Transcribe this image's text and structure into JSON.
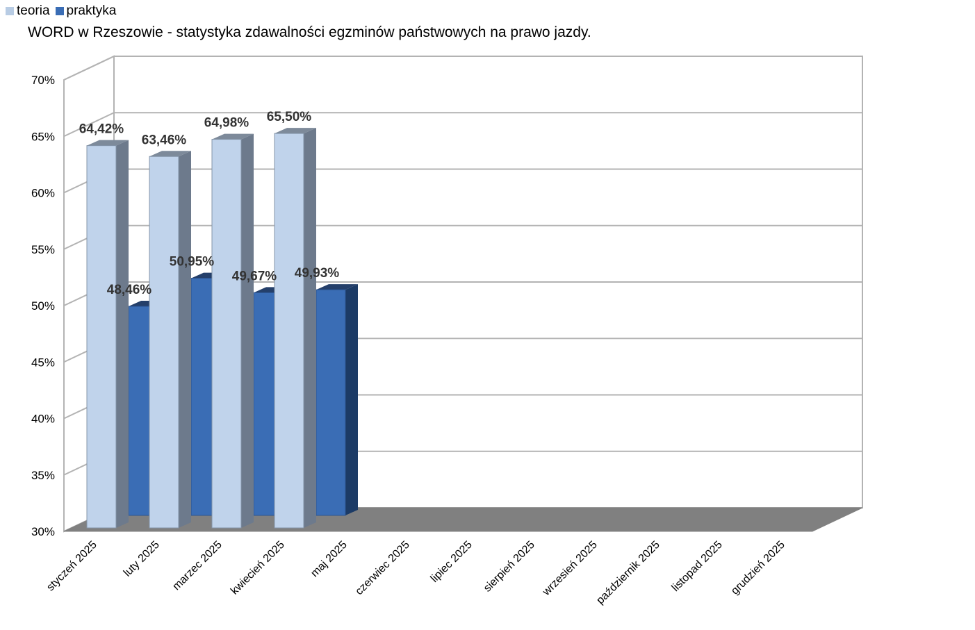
{
  "chart_data": {
    "type": "bar",
    "title": "WORD w Rzeszowie - statystyka zdawalności egzminów państwowych na prawo jazdy.",
    "categories": [
      "styczeń 2025",
      "luty 2025",
      "marzec 2025",
      "kwiecień 2025",
      "maj 2025",
      "czerwiec 2025",
      "lipiec 2025",
      "sierpień 2025",
      "wrzesień 2025",
      "październik 2025",
      "listopad 2025",
      "grudzień 2025"
    ],
    "series": [
      {
        "name": "teoria",
        "color": "#b8cce4",
        "values": [
          64.42,
          63.46,
          64.98,
          65.5,
          null,
          null,
          null,
          null,
          null,
          null,
          null,
          null
        ],
        "labels": [
          "64,42%",
          "63,46%",
          "64,98%",
          "65,50%",
          "",
          "",
          "",
          "",
          "",
          "",
          "",
          ""
        ]
      },
      {
        "name": "praktyka",
        "color": "#3a6db5",
        "values": [
          48.46,
          50.95,
          49.67,
          49.93,
          null,
          null,
          null,
          null,
          null,
          null,
          null,
          null
        ],
        "labels": [
          "48,46%",
          "50,95%",
          "49,67%",
          "49,93%",
          "",
          "",
          "",
          "",
          "",
          "",
          "",
          ""
        ]
      }
    ],
    "ylim": [
      30,
      70
    ],
    "yticks": [
      "30%",
      "35%",
      "40%",
      "45%",
      "50%",
      "55%",
      "60%",
      "65%",
      "70%"
    ],
    "xlabel": "",
    "ylabel": "",
    "grid": true,
    "legend": "top-left",
    "style": "3d-bar"
  }
}
